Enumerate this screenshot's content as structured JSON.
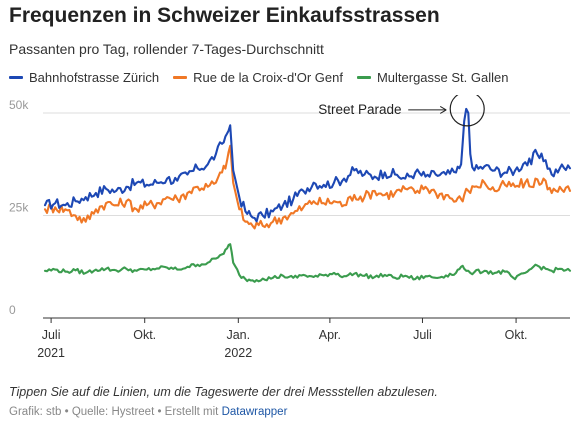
{
  "header": {
    "title": "Frequenzen in Schweizer Einkaufsstrassen",
    "subtitle": "Passanten pro Tag, rollender 7-Tages-Durchschnitt"
  },
  "footer": {
    "note": "Tippen Sie auf die Linien, um die Tageswerte der drei Messstellen abzulesen.",
    "credit": "Grafik: stb • Quelle: Hystreet • Erstellt mit ",
    "link_label": "Datawrapper"
  },
  "chart_data": {
    "type": "line",
    "title": "Frequenzen in Schweizer Einkaufsstrassen",
    "subtitle": "Passanten pro Tag, rollender 7-Tages-Durchschnitt",
    "x_range": [
      "2021-06-25",
      "2022-11-23"
    ],
    "ylim": [
      0,
      50000
    ],
    "y_ticks": [
      {
        "value": 0,
        "label": "0"
      },
      {
        "value": 25000,
        "label": "25k"
      },
      {
        "value": 50000,
        "label": "50k"
      }
    ],
    "x_ticks": [
      {
        "date": "2021-07-01",
        "label": "Juli",
        "year": "2021"
      },
      {
        "date": "2021-10-01",
        "label": "Okt.",
        "year": ""
      },
      {
        "date": "2022-01-01",
        "label": "Jan.",
        "year": "2022"
      },
      {
        "date": "2022-04-01",
        "label": "Apr.",
        "year": ""
      },
      {
        "date": "2022-07-01",
        "label": "Juli",
        "year": ""
      },
      {
        "date": "2022-10-01",
        "label": "Okt.",
        "year": ""
      }
    ],
    "grid": true,
    "legend": "top",
    "annotation": {
      "text": "Street Parade",
      "date": "2022-08-13",
      "value": 51000
    },
    "series": [
      {
        "name": "Bahnhofstrasse Zürich",
        "color": "#1d48b4",
        "points": [
          [
            "2021-06-25",
            27500
          ],
          [
            "2021-07-05",
            28000
          ],
          [
            "2021-07-15",
            27500
          ],
          [
            "2021-07-25",
            28500
          ],
          [
            "2021-08-04",
            29500
          ],
          [
            "2021-08-14",
            30500
          ],
          [
            "2021-08-24",
            31500
          ],
          [
            "2021-09-03",
            31000
          ],
          [
            "2021-09-13",
            32000
          ],
          [
            "2021-09-23",
            33000
          ],
          [
            "2021-10-03",
            32500
          ],
          [
            "2021-10-13",
            33000
          ],
          [
            "2021-10-23",
            34000
          ],
          [
            "2021-11-02",
            33500
          ],
          [
            "2021-11-12",
            35000
          ],
          [
            "2021-11-22",
            36500
          ],
          [
            "2021-12-02",
            37500
          ],
          [
            "2021-12-10",
            40000
          ],
          [
            "2021-12-16",
            42500
          ],
          [
            "2021-12-21",
            45000
          ],
          [
            "2021-12-24",
            47000
          ],
          [
            "2021-12-27",
            36000
          ],
          [
            "2022-01-02",
            29500
          ],
          [
            "2022-01-08",
            26000
          ],
          [
            "2022-01-15",
            24500
          ],
          [
            "2022-01-25",
            25000
          ],
          [
            "2022-02-04",
            26000
          ],
          [
            "2022-02-14",
            27500
          ],
          [
            "2022-02-24",
            29000
          ],
          [
            "2022-03-06",
            31000
          ],
          [
            "2022-03-16",
            33000
          ],
          [
            "2022-03-26",
            32500
          ],
          [
            "2022-04-05",
            33000
          ],
          [
            "2022-04-15",
            34000
          ],
          [
            "2022-04-25",
            36000
          ],
          [
            "2022-05-05",
            35000
          ],
          [
            "2022-05-15",
            34500
          ],
          [
            "2022-05-25",
            35500
          ],
          [
            "2022-06-04",
            35000
          ],
          [
            "2022-06-14",
            34000
          ],
          [
            "2022-06-24",
            35500
          ],
          [
            "2022-07-04",
            34500
          ],
          [
            "2022-07-14",
            35000
          ],
          [
            "2022-07-24",
            35000
          ],
          [
            "2022-08-03",
            35500
          ],
          [
            "2022-08-08",
            37500
          ],
          [
            "2022-08-11",
            48000
          ],
          [
            "2022-08-13",
            51000
          ],
          [
            "2022-08-15",
            50000
          ],
          [
            "2022-08-17",
            40000
          ],
          [
            "2022-08-21",
            36000
          ],
          [
            "2022-08-31",
            37000
          ],
          [
            "2022-09-10",
            36000
          ],
          [
            "2022-09-20",
            35500
          ],
          [
            "2022-09-30",
            36000
          ],
          [
            "2022-10-10",
            38000
          ],
          [
            "2022-10-16",
            37500
          ],
          [
            "2022-10-20",
            41000
          ],
          [
            "2022-10-24",
            39000
          ],
          [
            "2022-10-30",
            38500
          ],
          [
            "2022-11-05",
            35000
          ],
          [
            "2022-11-13",
            36500
          ],
          [
            "2022-11-23",
            36500
          ]
        ]
      },
      {
        "name": "Rue de la Croix-d'Or Genf",
        "color": "#f07826",
        "points": [
          [
            "2021-06-25",
            26500
          ],
          [
            "2021-07-05",
            27000
          ],
          [
            "2021-07-15",
            26500
          ],
          [
            "2021-07-25",
            25000
          ],
          [
            "2021-08-04",
            23500
          ],
          [
            "2021-08-14",
            26500
          ],
          [
            "2021-08-24",
            28000
          ],
          [
            "2021-09-03",
            27500
          ],
          [
            "2021-09-13",
            28500
          ],
          [
            "2021-09-23",
            26500
          ],
          [
            "2021-10-03",
            27500
          ],
          [
            "2021-10-13",
            28000
          ],
          [
            "2021-10-23",
            29500
          ],
          [
            "2021-11-02",
            29000
          ],
          [
            "2021-11-12",
            30500
          ],
          [
            "2021-11-22",
            32000
          ],
          [
            "2021-12-02",
            32000
          ],
          [
            "2021-12-10",
            33000
          ],
          [
            "2021-12-16",
            35500
          ],
          [
            "2021-12-21",
            38500
          ],
          [
            "2021-12-24",
            42000
          ],
          [
            "2021-12-27",
            33000
          ],
          [
            "2022-01-02",
            26500
          ],
          [
            "2022-01-08",
            23500
          ],
          [
            "2022-01-15",
            22500
          ],
          [
            "2022-01-25",
            22500
          ],
          [
            "2022-02-04",
            23500
          ],
          [
            "2022-02-14",
            24500
          ],
          [
            "2022-02-24",
            25500
          ],
          [
            "2022-03-06",
            27000
          ],
          [
            "2022-03-16",
            28500
          ],
          [
            "2022-03-26",
            28000
          ],
          [
            "2022-04-05",
            28500
          ],
          [
            "2022-04-15",
            27500
          ],
          [
            "2022-04-25",
            30000
          ],
          [
            "2022-05-05",
            29500
          ],
          [
            "2022-05-15",
            31000
          ],
          [
            "2022-05-25",
            30000
          ],
          [
            "2022-06-04",
            30500
          ],
          [
            "2022-06-14",
            31500
          ],
          [
            "2022-06-24",
            30500
          ],
          [
            "2022-07-04",
            32000
          ],
          [
            "2022-07-14",
            30500
          ],
          [
            "2022-07-24",
            30000
          ],
          [
            "2022-08-03",
            28500
          ],
          [
            "2022-08-08",
            29000
          ],
          [
            "2022-08-11",
            30000
          ],
          [
            "2022-08-13",
            31500
          ],
          [
            "2022-08-15",
            31000
          ],
          [
            "2022-08-17",
            30500
          ],
          [
            "2022-08-21",
            32000
          ],
          [
            "2022-08-31",
            33000
          ],
          [
            "2022-09-10",
            31000
          ],
          [
            "2022-09-20",
            32500
          ],
          [
            "2022-09-30",
            32000
          ],
          [
            "2022-10-10",
            33000
          ],
          [
            "2022-10-16",
            32000
          ],
          [
            "2022-10-20",
            34000
          ],
          [
            "2022-10-24",
            32500
          ],
          [
            "2022-10-30",
            33500
          ],
          [
            "2022-11-05",
            30500
          ],
          [
            "2022-11-13",
            32000
          ],
          [
            "2022-11-23",
            31000
          ]
        ]
      },
      {
        "name": "Multergasse St. Gallen",
        "color": "#3b9c4e",
        "points": [
          [
            "2021-06-25",
            11500
          ],
          [
            "2021-07-05",
            11800
          ],
          [
            "2021-07-15",
            11300
          ],
          [
            "2021-07-25",
            11600
          ],
          [
            "2021-08-04",
            11000
          ],
          [
            "2021-08-14",
            11800
          ],
          [
            "2021-08-24",
            12000
          ],
          [
            "2021-09-03",
            11600
          ],
          [
            "2021-09-13",
            12000
          ],
          [
            "2021-09-23",
            11500
          ],
          [
            "2021-10-03",
            11800
          ],
          [
            "2021-10-13",
            12100
          ],
          [
            "2021-10-23",
            12300
          ],
          [
            "2021-11-02",
            11800
          ],
          [
            "2021-11-12",
            12500
          ],
          [
            "2021-11-22",
            13000
          ],
          [
            "2021-12-02",
            13500
          ],
          [
            "2021-12-10",
            14500
          ],
          [
            "2021-12-16",
            15500
          ],
          [
            "2021-12-21",
            17000
          ],
          [
            "2021-12-24",
            18000
          ],
          [
            "2021-12-27",
            13500
          ],
          [
            "2022-01-02",
            10500
          ],
          [
            "2022-01-08",
            9500
          ],
          [
            "2022-01-15",
            9200
          ],
          [
            "2022-01-25",
            9600
          ],
          [
            "2022-02-04",
            9800
          ],
          [
            "2022-02-14",
            10300
          ],
          [
            "2022-02-24",
            9800
          ],
          [
            "2022-03-06",
            10500
          ],
          [
            "2022-03-16",
            10000
          ],
          [
            "2022-03-26",
            10400
          ],
          [
            "2022-04-05",
            11000
          ],
          [
            "2022-04-15",
            10200
          ],
          [
            "2022-04-25",
            10800
          ],
          [
            "2022-05-05",
            10300
          ],
          [
            "2022-05-15",
            10000
          ],
          [
            "2022-05-25",
            10500
          ],
          [
            "2022-06-04",
            9800
          ],
          [
            "2022-06-14",
            10300
          ],
          [
            "2022-06-24",
            9500
          ],
          [
            "2022-07-04",
            10200
          ],
          [
            "2022-07-14",
            9800
          ],
          [
            "2022-07-24",
            10400
          ],
          [
            "2022-08-03",
            11000
          ],
          [
            "2022-08-08",
            12500
          ],
          [
            "2022-08-11",
            12000
          ],
          [
            "2022-08-13",
            11500
          ],
          [
            "2022-08-15",
            11500
          ],
          [
            "2022-08-17",
            11000
          ],
          [
            "2022-08-21",
            11200
          ],
          [
            "2022-08-31",
            11500
          ],
          [
            "2022-09-10",
            11000
          ],
          [
            "2022-09-20",
            11300
          ],
          [
            "2022-09-30",
            9500
          ],
          [
            "2022-10-10",
            11000
          ],
          [
            "2022-10-16",
            12000
          ],
          [
            "2022-10-20",
            13000
          ],
          [
            "2022-10-24",
            12500
          ],
          [
            "2022-10-30",
            12000
          ],
          [
            "2022-11-05",
            11500
          ],
          [
            "2022-11-13",
            12000
          ],
          [
            "2022-11-23",
            11500
          ]
        ]
      }
    ]
  }
}
